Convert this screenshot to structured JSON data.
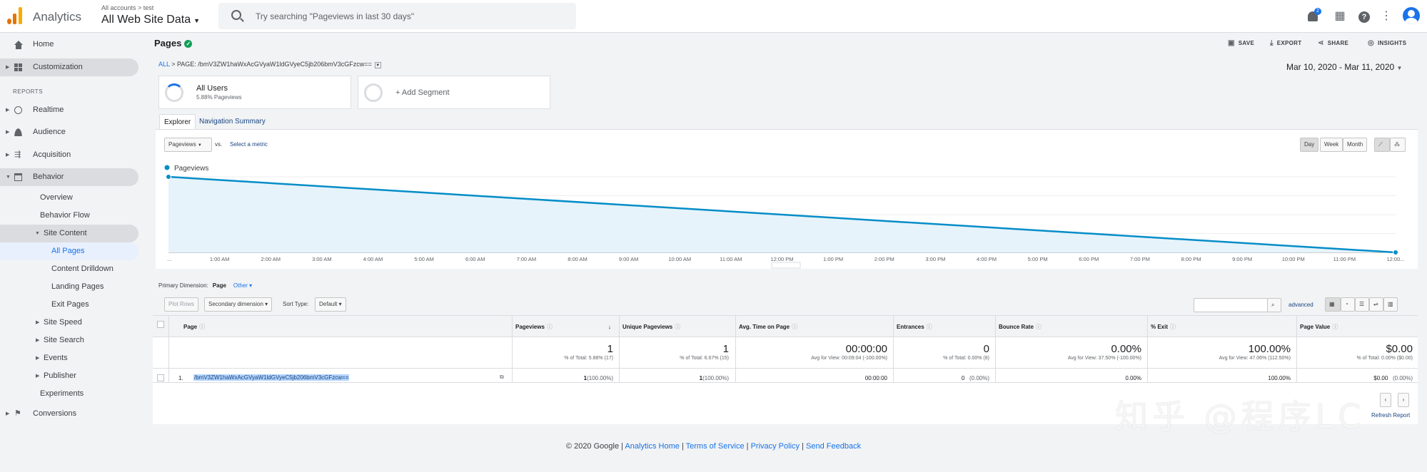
{
  "header": {
    "brand": "Analytics",
    "breadcrumb": "All accounts > test",
    "property": "All Web Site Data",
    "search_placeholder": "Try searching \"Pageviews in last 30 days\"",
    "notification_count": "2"
  },
  "sidebar": {
    "home": "Home",
    "customization": "Customization",
    "reports_header": "REPORTS",
    "realtime": "Realtime",
    "audience": "Audience",
    "acquisition": "Acquisition",
    "behavior": "Behavior",
    "overview": "Overview",
    "behavior_flow": "Behavior Flow",
    "site_content": "Site Content",
    "all_pages": "All Pages",
    "content_drilldown": "Content Drilldown",
    "landing_pages": "Landing Pages",
    "exit_pages": "Exit Pages",
    "site_speed": "Site Speed",
    "site_search": "Site Search",
    "events": "Events",
    "publisher": "Publisher",
    "experiments": "Experiments",
    "conversions": "Conversions"
  },
  "report": {
    "title": "Pages",
    "save": "SAVE",
    "export": "EXPORT",
    "share": "SHARE",
    "insights": "INSIGHTS",
    "bc_all": "ALL",
    "bc_page": "PAGE: /bmV3ZW1haWxAcGVyaW1ldGVyeC5jb206bmV3cGFzcw==",
    "date_range": "Mar 10, 2020 - Mar 11, 2020",
    "segment_name": "All Users",
    "segment_pct": "5.88% Pageviews",
    "add_segment": "+ Add Segment",
    "tab_explorer": "Explorer",
    "tab_nav": "Navigation Summary",
    "metric": "Pageviews",
    "vs": "vs.",
    "select_metric": "Select a metric",
    "day": "Day",
    "week": "Week",
    "month": "Month",
    "primary_dim_label": "Primary Dimension:",
    "primary_dim": "Page",
    "other": "Other",
    "plot_rows": "Plot Rows",
    "secondary_dim": "Secondary dimension",
    "sort_type_label": "Sort Type:",
    "sort_type": "Default",
    "advanced": "advanced"
  },
  "chart_data": {
    "type": "line",
    "series": [
      {
        "name": "Pageviews",
        "values": [
          1,
          0
        ]
      }
    ],
    "x": [
      "...",
      "12:00..."
    ],
    "x_ticks": [
      "...",
      "1:00 AM",
      "2:00 AM",
      "3:00 AM",
      "4:00 AM",
      "5:00 AM",
      "6:00 AM",
      "7:00 AM",
      "8:00 AM",
      "9:00 AM",
      "10:00 AM",
      "11:00 AM",
      "12:00 PM",
      "1:00 PM",
      "2:00 PM",
      "3:00 PM",
      "4:00 PM",
      "5:00 PM",
      "6:00 PM",
      "7:00 PM",
      "8:00 PM",
      "9:00 PM",
      "10:00 PM",
      "11:00 PM",
      "12:00..."
    ],
    "y_ticks": [
      "1",
      "0.5"
    ],
    "ylim": [
      0,
      1
    ],
    "color": "#058dc7",
    "grid": true,
    "legend": "top-left"
  },
  "table": {
    "headers": [
      "Page",
      "Pageviews",
      "Unique Pageviews",
      "Avg. Time on Page",
      "Entrances",
      "Bounce Rate",
      "% Exit",
      "Page Value"
    ],
    "totals": [
      "1",
      "1",
      "00:00:00",
      "0",
      "0.00%",
      "100.00%",
      "$0.00"
    ],
    "totals_sub": [
      "% of Total: 5.88% (17)",
      "% of Total: 6.67% (15)",
      "Avg for View: 00:09:04 (-100.00%)",
      "% of Total: 0.00% (8)",
      "Avg for View: 37.50% (-100.00%)",
      "Avg for View: 47.06% (112.50%)",
      "% of Total: 0.00% ($0.00)"
    ],
    "row_index": "1.",
    "row_page": "/bmV3ZW1haWxAcGVyaW1ldGVyeC5jb206bmV3cGFzcw==",
    "row_pageviews": "1",
    "row_pageviews_pct": "(100.00%)",
    "row_unique": "1",
    "row_unique_pct": "(100.00%)",
    "row_avg_time": "00:00:00",
    "row_entrances": "0",
    "row_entrances_pct": "(0.00%)",
    "row_bounce": "0.00%",
    "row_exit": "100.00%",
    "row_value": "$0.00",
    "row_value_pct": "(0.00%)",
    "refresh": "Refresh Report"
  },
  "footer": {
    "copyright": "© 2020 Google |",
    "home": "Analytics Home",
    "terms": "Terms of Service",
    "privacy": "Privacy Policy",
    "feedback": "Send Feedback",
    "sep": "|"
  },
  "watermark": "知乎 @程序LC"
}
